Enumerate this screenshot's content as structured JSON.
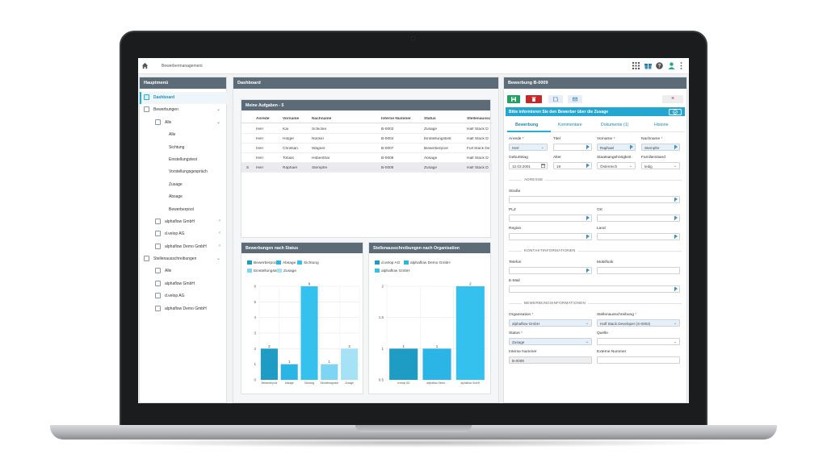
{
  "app": {
    "title": "Bewerbermanagement",
    "icons": [
      "home-icon",
      "apps-grid-icon",
      "gift-icon",
      "help-icon",
      "user-icon",
      "more-vert-icon"
    ]
  },
  "sidebar": {
    "header": "Hauptmenü",
    "items": [
      {
        "label": "Dashboard",
        "level": 0,
        "icon": "dashboard-icon",
        "active": true,
        "chevron": ""
      },
      {
        "label": "Bewerbungen",
        "level": 0,
        "icon": "folder-user-icon",
        "chevron": "⌄"
      },
      {
        "label": "Alle",
        "level": 1,
        "icon": "list-icon",
        "chevron": "⌄"
      },
      {
        "label": "Alle",
        "level": 2
      },
      {
        "label": "Sichtung",
        "level": 2
      },
      {
        "label": "Einstellungstest",
        "level": 2
      },
      {
        "label": "Vorstellungsgespräch",
        "level": 2
      },
      {
        "label": "Zusage",
        "level": 2
      },
      {
        "label": "Absage",
        "level": 2
      },
      {
        "label": "Bewerberpool",
        "level": 2
      },
      {
        "label": "alphaflow GmbH",
        "level": 1,
        "icon": "list-icon",
        "chevron": "‹"
      },
      {
        "label": "d.velop AG",
        "level": 1,
        "icon": "list-icon",
        "chevron": "‹"
      },
      {
        "label": "alphaflow Demo GmbH",
        "level": 1,
        "icon": "list-icon",
        "chevron": "‹"
      },
      {
        "label": "Stellenausschreibungen",
        "level": 0,
        "icon": "job-board-icon",
        "chevron": "⌄"
      },
      {
        "label": "Alle",
        "level": 1,
        "icon": "list-icon",
        "chevron": ""
      },
      {
        "label": "alphaflow GmbH",
        "level": 1,
        "icon": "list-icon",
        "chevron": ""
      },
      {
        "label": "d.velop AG",
        "level": 1,
        "icon": "list-icon",
        "chevron": ""
      },
      {
        "label": "alphaflow Demo GmbH",
        "level": 1,
        "icon": "list-icon",
        "chevron": ""
      }
    ]
  },
  "dashboard": {
    "header": "Dashboard",
    "tasks": {
      "title": "Meine Aufgaben - 5",
      "columns": [
        "Anrede",
        "Vorname",
        "Nachname",
        "Interne Nummer",
        "Status",
        "Stellenaussc"
      ],
      "rows": [
        {
          "anrede": "Herr",
          "vorname": "Kai",
          "nachname": "Schicker",
          "nummer": "B-0003",
          "status": "Zusage",
          "stelle": "Half Stack D",
          "selected": false,
          "marker": ""
        },
        {
          "anrede": "Herr",
          "vorname": "Holger",
          "nachname": "Nückel",
          "nummer": "B-0004",
          "status": "Einstellungstest",
          "stelle": "Half Stack D",
          "selected": false,
          "marker": ""
        },
        {
          "anrede": "Herr",
          "vorname": "Christian",
          "nachname": "Wagner",
          "nummer": "B-0007",
          "status": "Bewerberpool",
          "stelle": "Full Stack De",
          "selected": false,
          "marker": ""
        },
        {
          "anrede": "Herr",
          "vorname": "Tobias",
          "nachname": "Hübenthal",
          "nummer": "B-0008",
          "status": "Absage",
          "stelle": "Half Stack D",
          "selected": false,
          "marker": ""
        },
        {
          "anrede": "Herr",
          "vorname": "Raphael",
          "nachname": "Stempfer",
          "nummer": "B-0009",
          "status": "Zusage",
          "stelle": "Half Stack D",
          "selected": true,
          "marker": "S"
        }
      ]
    }
  },
  "chart_data": [
    {
      "type": "bar",
      "title": "Bewerbungen nach Status",
      "categories": [
        "Bewerberpool",
        "Absage",
        "Sichtung",
        "Einstellungstest",
        "Zusage"
      ],
      "legend": [
        "Bewerberpool",
        "Absage",
        "Sichtung",
        "Einstellungstest",
        "Zusage"
      ],
      "colors": [
        "#1e9cc3",
        "#2bb5e6",
        "#35c1ee",
        "#7dd5f3",
        "#a6e2f6"
      ],
      "values": [
        2,
        1,
        6,
        1,
        2
      ],
      "ylim": [
        0,
        6
      ],
      "yticks": [
        0,
        1,
        2,
        3,
        4,
        5,
        6
      ],
      "grid": true,
      "legend_position": "top-left"
    },
    {
      "type": "bar",
      "title": "Stellenausschreibungen nach Organisation",
      "categories": [
        "d.velop AG",
        "alphaflow Demo...",
        "alphaflow GmbH"
      ],
      "legend": [
        "d.velop AG",
        "alphaflow Demo GmbH",
        "alphaflow GmbH"
      ],
      "colors": [
        "#1e9cc3",
        "#2bb5e6",
        "#35c1ee"
      ],
      "values": [
        1,
        1,
        2
      ],
      "ylim": [
        0.5,
        2
      ],
      "yticks": [
        0.5,
        1,
        1.5,
        2
      ],
      "grid": true,
      "legend_position": "top-left"
    }
  ],
  "form": {
    "header": "Bewerbung B-0009",
    "toolbar": {
      "save": "save-icon",
      "delete": "trash-icon",
      "document": "document-icon",
      "mail": "mail-icon",
      "close": "×"
    },
    "info": "Bitte informieren Sie den Bewerber über die Zusage",
    "tabs": [
      "Bewerbung",
      "Kommentare",
      "Dokumente (1)",
      "Historie"
    ],
    "fields": {
      "anrede": {
        "label": "Anrede",
        "value": "Herr"
      },
      "titel": {
        "label": "Titel",
        "value": ""
      },
      "vorname": {
        "label": "Vorname",
        "value": "Raphael"
      },
      "nachname": {
        "label": "Nachname",
        "value": "Stempfer"
      },
      "geburtstag": {
        "label": "Geburtstag",
        "value": "12.03.2001"
      },
      "alter": {
        "label": "Alter",
        "value": "19"
      },
      "staat": {
        "label": "Staatsangehörigkeit",
        "value": "Österreich"
      },
      "familienstand": {
        "label": "Familienstand",
        "value": "ledig"
      },
      "adresse_section": "ADRESSE",
      "strasse": {
        "label": "Straße",
        "value": ""
      },
      "plz": {
        "label": "PLZ",
        "value": ""
      },
      "ort": {
        "label": "Ort",
        "value": ""
      },
      "region": {
        "label": "Region",
        "value": ""
      },
      "land": {
        "label": "Land",
        "value": ""
      },
      "kontakt_section": "KONTAKTINFORMATIONEN",
      "telefon": {
        "label": "Telefon",
        "value": ""
      },
      "mobilfunk": {
        "label": "Mobilfunk",
        "value": ""
      },
      "email": {
        "label": "E-Mail",
        "value": ""
      },
      "bewerbung_section": "BEWERBUNGSINFORMATIONEN",
      "organisation": {
        "label": "Organisation",
        "value": "alphaflow GmbH"
      },
      "stelle": {
        "label": "Stellenausschreibung",
        "value": "Half Stack Developer (S-0002)"
      },
      "status": {
        "label": "Status",
        "value": "Zusage"
      },
      "quelle": {
        "label": "Quelle",
        "value": ""
      },
      "interne_nummer": {
        "label": "Interne Nummer",
        "value": "B-0009"
      },
      "externe_nummer": {
        "label": "Externe Nummer",
        "value": ""
      }
    }
  }
}
